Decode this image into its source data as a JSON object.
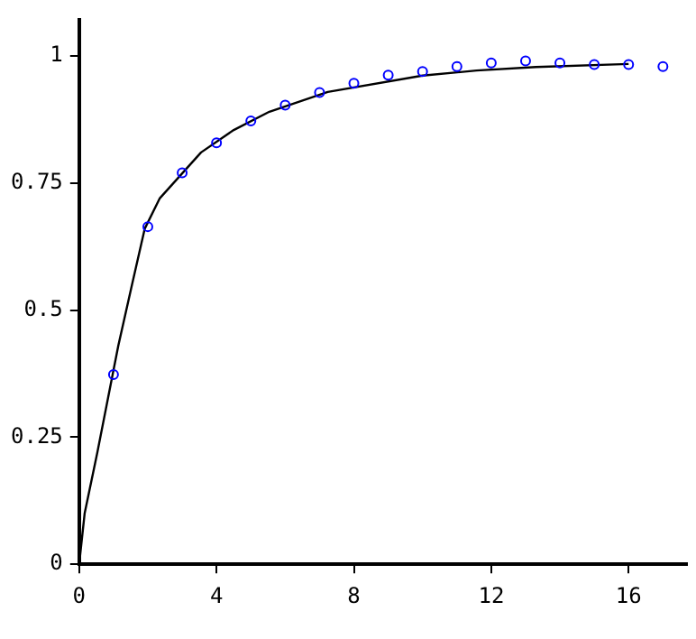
{
  "chart_data": {
    "type": "scatter",
    "xlim": [
      0,
      17.7
    ],
    "ylim": [
      0,
      1.07
    ],
    "xticks": [
      0,
      4,
      8,
      12,
      16
    ],
    "yticks": [
      0,
      0.25,
      0.5,
      0.75,
      1
    ],
    "grid": false,
    "legend": false,
    "series": [
      {
        "color": "#0000ff",
        "marker": "circle",
        "x": [
          1,
          2,
          3,
          4,
          5,
          6,
          7,
          8,
          9,
          10,
          11,
          12,
          13,
          14,
          15,
          16,
          17
        ],
        "values": [
          0.373,
          0.664,
          0.77,
          0.829,
          0.872,
          0.903,
          0.928,
          0.946,
          0.962,
          0.969,
          0.979,
          0.986,
          0.99,
          0.986,
          0.983,
          0.983,
          0.979
        ]
      },
      {
        "type": "line",
        "color": "#000000",
        "marker": "none",
        "x": [
          0,
          0.16,
          0.53,
          1.14,
          1.54,
          1.91,
          2.35,
          3.55,
          4.5,
          5.54,
          7.24,
          10,
          11.57,
          13.3,
          16
        ],
        "values": [
          0,
          0.1,
          0.22,
          0.43,
          0.55,
          0.66,
          0.72,
          0.81,
          0.854,
          0.89,
          0.929,
          0.961,
          0.971,
          0.978,
          0.984
        ]
      }
    ]
  }
}
